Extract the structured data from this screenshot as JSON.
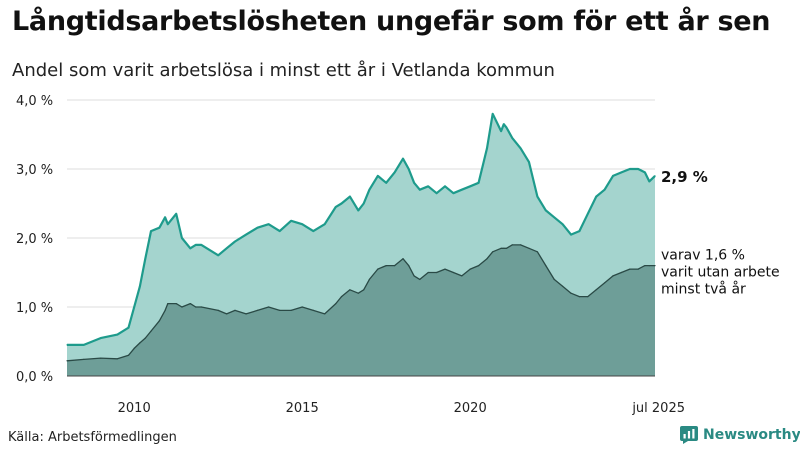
{
  "title": "Långtidsarbetslösheten ungefär som för ett år sen",
  "subtitle": "Andel som varit arbetslösa i minst ett år i Vetlanda kommun",
  "source": "Källa: Arbetsförmedlingen",
  "brand": {
    "name": "Newsworthy",
    "icon": "newsworthy-logo-icon",
    "color": "#2a8a83"
  },
  "chart_data": {
    "type": "area",
    "title": "Långtidsarbetslösheten ungefär som för ett år sen",
    "subtitle": "Andel som varit arbetslösa i minst ett år i Vetlanda kommun",
    "xlabel": "",
    "ylabel": "",
    "ylim": [
      0,
      4
    ],
    "xlim": [
      2008.0,
      2025.5
    ],
    "y_ticks": [
      "0,0 %",
      "1,0 %",
      "2,0 %",
      "3,0 %",
      "4,0 %"
    ],
    "x_ticks": [
      {
        "x": 2010,
        "label": "2010"
      },
      {
        "x": 2015,
        "label": "2015"
      },
      {
        "x": 2020,
        "label": "2020"
      },
      {
        "x": 2025.5,
        "label": "jul 2025"
      }
    ],
    "grid": "horizontal",
    "colors": {
      "total_fill": "#a4d4ce",
      "total_line": "#1e9b8c",
      "longterm_fill": "#6e9e98",
      "longterm_line": "#2a4a46"
    },
    "annotations": {
      "total_end": "2,9 %",
      "longterm_end": [
        "varav 1,6 %",
        "varit utan arbete",
        "minst två år"
      ]
    },
    "x": [
      2008.0,
      2008.5,
      2009.0,
      2009.5,
      2009.83,
      2010.0,
      2010.17,
      2010.33,
      2010.5,
      2010.75,
      2010.92,
      2011.0,
      2011.25,
      2011.42,
      2011.67,
      2011.83,
      2012.0,
      2012.5,
      2012.75,
      2013.0,
      2013.33,
      2013.67,
      2014.0,
      2014.33,
      2014.67,
      2015.0,
      2015.33,
      2015.67,
      2016.0,
      2016.17,
      2016.42,
      2016.67,
      2016.83,
      2017.0,
      2017.25,
      2017.5,
      2017.75,
      2018.0,
      2018.17,
      2018.33,
      2018.5,
      2018.75,
      2019.0,
      2019.25,
      2019.5,
      2019.75,
      2020.0,
      2020.25,
      2020.5,
      2020.67,
      2020.92,
      2021.0,
      2021.08,
      2021.25,
      2021.5,
      2021.75,
      2022.0,
      2022.25,
      2022.5,
      2022.75,
      2023.0,
      2023.25,
      2023.5,
      2023.75,
      2024.0,
      2024.25,
      2024.5,
      2024.75,
      2025.0,
      2025.2,
      2025.33,
      2025.5
    ],
    "series": [
      {
        "name": "",
        "values": [
          0.45,
          0.45,
          0.55,
          0.6,
          0.7,
          1.0,
          1.3,
          1.7,
          2.1,
          2.15,
          2.3,
          2.2,
          2.35,
          2.0,
          1.85,
          1.9,
          1.9,
          1.75,
          1.85,
          1.95,
          2.05,
          2.15,
          2.2,
          2.1,
          2.25,
          2.2,
          2.1,
          2.2,
          2.45,
          2.5,
          2.6,
          2.4,
          2.5,
          2.7,
          2.9,
          2.8,
          2.95,
          3.15,
          3.0,
          2.8,
          2.7,
          2.75,
          2.65,
          2.75,
          2.65,
          2.7,
          2.75,
          2.8,
          3.3,
          3.8,
          3.55,
          3.65,
          3.6,
          3.45,
          3.3,
          3.1,
          2.6,
          2.4,
          2.3,
          2.2,
          2.05,
          2.1,
          2.35,
          2.6,
          2.7,
          2.9,
          2.95,
          3.0,
          3.0,
          2.95,
          2.82,
          2.9
        ]
      },
      {
        "name": "",
        "values": [
          0.22,
          0.24,
          0.26,
          0.25,
          0.3,
          0.4,
          0.48,
          0.55,
          0.65,
          0.8,
          0.95,
          1.05,
          1.05,
          1.0,
          1.05,
          1.0,
          1.0,
          0.95,
          0.9,
          0.95,
          0.9,
          0.95,
          1.0,
          0.95,
          0.95,
          1.0,
          0.95,
          0.9,
          1.05,
          1.15,
          1.25,
          1.2,
          1.25,
          1.4,
          1.55,
          1.6,
          1.6,
          1.7,
          1.6,
          1.45,
          1.4,
          1.5,
          1.5,
          1.55,
          1.5,
          1.45,
          1.55,
          1.6,
          1.7,
          1.8,
          1.85,
          1.85,
          1.85,
          1.9,
          1.9,
          1.85,
          1.8,
          1.6,
          1.4,
          1.3,
          1.2,
          1.15,
          1.15,
          1.25,
          1.35,
          1.45,
          1.5,
          1.55,
          1.55,
          1.6,
          1.6,
          1.6
        ]
      }
    ]
  }
}
